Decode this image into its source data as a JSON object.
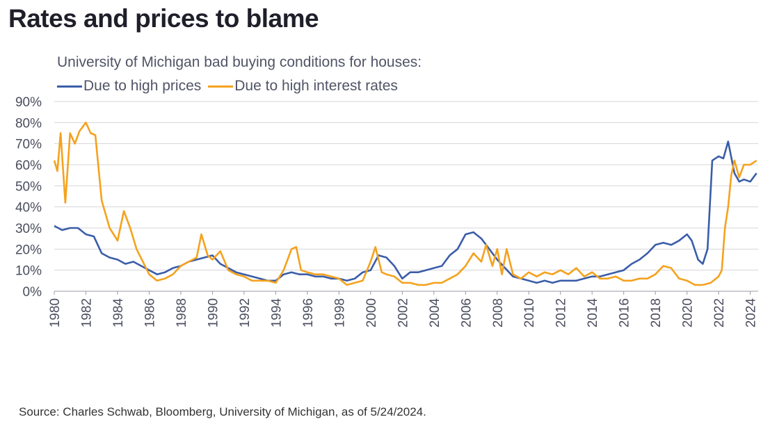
{
  "title": "Rates and prices to blame",
  "subtitle": "University of Michigan bad buying conditions for houses:",
  "source": "Source: Charles Schwab, Bloomberg, University of Michigan, as of 5/24/2024.",
  "chart_data": {
    "type": "line",
    "ylim": [
      0,
      90
    ],
    "xlim": [
      1980,
      2024.5
    ],
    "yticks": [
      "0%",
      "10%",
      "20%",
      "30%",
      "40%",
      "50%",
      "60%",
      "70%",
      "80%",
      "90%"
    ],
    "xticks": [
      "1980",
      "1982",
      "1984",
      "1986",
      "1988",
      "1990",
      "1992",
      "1994",
      "1996",
      "1998",
      "2000",
      "2002",
      "2004",
      "2006",
      "2008",
      "2010",
      "2012",
      "2014",
      "2016",
      "2018",
      "2020",
      "2022",
      "2024"
    ],
    "grid": true,
    "legend_position": "top-left",
    "series": [
      {
        "name": "Due to high prices",
        "color": "#3a5da8",
        "x": [
          1980,
          1980.5,
          1981,
          1981.5,
          1982,
          1982.5,
          1983,
          1983.5,
          1984,
          1984.5,
          1985,
          1985.5,
          1986,
          1986.5,
          1987,
          1987.5,
          1988,
          1988.5,
          1989,
          1989.5,
          1990,
          1990.5,
          1991,
          1991.5,
          1992,
          1992.5,
          1993,
          1993.5,
          1994,
          1994.5,
          1995,
          1995.5,
          1996,
          1996.5,
          1997,
          1997.5,
          1998,
          1998.5,
          1999,
          1999.5,
          2000,
          2000.5,
          2001,
          2001.5,
          2002,
          2002.5,
          2003,
          2003.5,
          2004,
          2004.5,
          2005,
          2005.5,
          2006,
          2006.5,
          2007,
          2007.5,
          2008,
          2008.5,
          2009,
          2009.5,
          2010,
          2010.5,
          2011,
          2011.5,
          2012,
          2012.5,
          2013,
          2013.5,
          2014,
          2014.5,
          2015,
          2015.5,
          2016,
          2016.5,
          2017,
          2017.5,
          2018,
          2018.5,
          2019,
          2019.5,
          2020,
          2020.3,
          2020.7,
          2021,
          2021.3,
          2021.6,
          2022,
          2022.3,
          2022.6,
          2023,
          2023.3,
          2023.6,
          2024,
          2024.4
        ],
        "values": [
          31,
          29,
          30,
          30,
          27,
          26,
          18,
          16,
          15,
          13,
          14,
          12,
          10,
          8,
          9,
          11,
          12,
          14,
          15,
          16,
          17,
          13,
          11,
          9,
          8,
          7,
          6,
          5,
          5,
          8,
          9,
          8,
          8,
          7,
          7,
          6,
          6,
          5,
          6,
          9,
          10,
          17,
          16,
          12,
          6,
          9,
          9,
          10,
          11,
          12,
          17,
          20,
          27,
          28,
          25,
          20,
          15,
          11,
          7,
          6,
          5,
          4,
          5,
          4,
          5,
          5,
          5,
          6,
          7,
          7,
          8,
          9,
          10,
          13,
          15,
          18,
          22,
          23,
          22,
          24,
          27,
          24,
          15,
          13,
          20,
          62,
          64,
          63,
          71,
          56,
          52,
          53,
          52,
          56
        ]
      },
      {
        "name": "Due to high interest rates",
        "color": "#f4a21d",
        "x": [
          1980,
          1980.2,
          1980.4,
          1980.7,
          1981,
          1981.3,
          1981.6,
          1982,
          1982.3,
          1982.6,
          1983,
          1983.5,
          1984,
          1984.4,
          1984.8,
          1985.2,
          1985.6,
          1986,
          1986.5,
          1987,
          1987.5,
          1988,
          1988.5,
          1989,
          1989.3,
          1989.7,
          1990,
          1990.5,
          1991,
          1991.5,
          1992,
          1992.5,
          1993,
          1993.5,
          1994,
          1994.5,
          1995,
          1995.3,
          1995.6,
          1996,
          1996.5,
          1997,
          1997.5,
          1998,
          1998.5,
          1999,
          1999.5,
          2000,
          2000.3,
          2000.7,
          2001,
          2001.5,
          2002,
          2002.5,
          2003,
          2003.5,
          2004,
          2004.5,
          2005,
          2005.5,
          2006,
          2006.5,
          2007,
          2007.3,
          2007.7,
          2008,
          2008.3,
          2008.6,
          2009,
          2009.5,
          2010,
          2010.5,
          2011,
          2011.5,
          2012,
          2012.5,
          2013,
          2013.5,
          2014,
          2014.5,
          2015,
          2015.5,
          2016,
          2016.5,
          2017,
          2017.5,
          2018,
          2018.5,
          2019,
          2019.5,
          2020,
          2020.5,
          2021,
          2021.5,
          2022,
          2022.2,
          2022.4,
          2022.6,
          2022.8,
          2023,
          2023.3,
          2023.6,
          2024,
          2024.4
        ],
        "values": [
          62,
          57,
          75,
          42,
          75,
          70,
          76,
          80,
          75,
          74,
          43,
          30,
          24,
          38,
          30,
          20,
          14,
          8,
          5,
          6,
          8,
          12,
          14,
          16,
          27,
          17,
          15,
          19,
          10,
          8,
          7,
          5,
          5,
          5,
          4,
          10,
          20,
          21,
          10,
          9,
          8,
          8,
          7,
          6,
          3,
          4,
          5,
          14,
          21,
          9,
          8,
          7,
          4,
          4,
          3,
          3,
          4,
          4,
          6,
          8,
          12,
          18,
          14,
          22,
          12,
          20,
          8,
          20,
          8,
          6,
          9,
          7,
          9,
          8,
          10,
          8,
          11,
          7,
          9,
          6,
          6,
          7,
          5,
          5,
          6,
          6,
          8,
          12,
          11,
          6,
          5,
          3,
          3,
          4,
          7,
          10,
          30,
          40,
          55,
          62,
          54,
          60,
          60,
          62
        ]
      }
    ]
  }
}
